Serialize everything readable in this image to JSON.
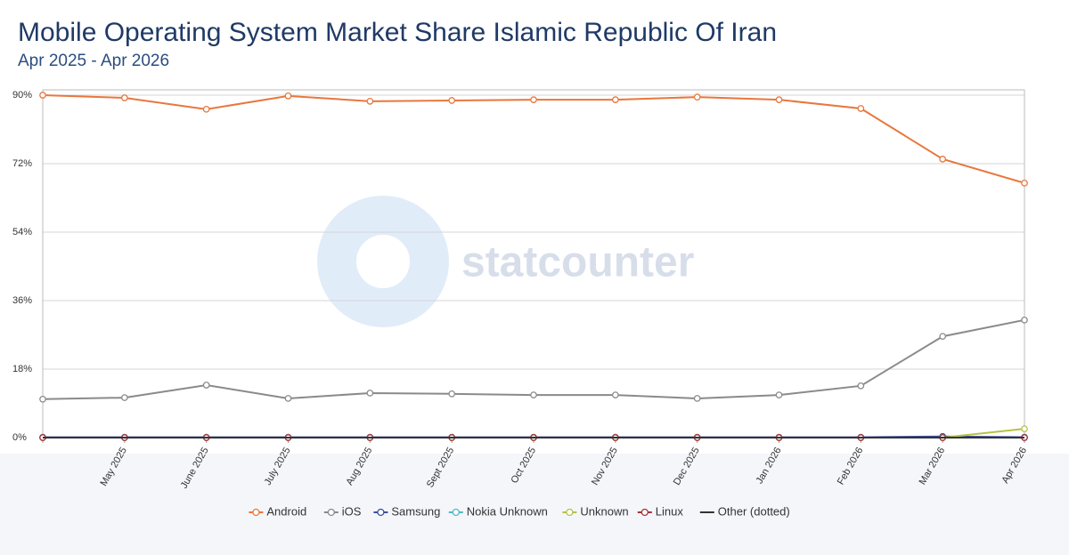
{
  "chart_data": {
    "type": "line",
    "title": "Mobile Operating System Market Share Islamic Republic Of Iran",
    "subtitle": "Apr 2025 - Apr 2026",
    "watermark": "statcounter",
    "categories": [
      null,
      "May 2025",
      "June 2025",
      "July 2025",
      "Aug 2025",
      "Sept 2025",
      "Oct 2025",
      "Nov 2025",
      "Dec 2025",
      "Jan 2026",
      "Feb 2026",
      "Mar 2026",
      "Apr 2026"
    ],
    "series": [
      {
        "name": "Android",
        "color": "#e8773d",
        "values": [
          90.0,
          89.3,
          86.3,
          89.8,
          88.4,
          88.6,
          88.8,
          88.8,
          89.5,
          88.8,
          86.5,
          73.2,
          66.9
        ]
      },
      {
        "name": "iOS",
        "color": "#8a8a8a",
        "values": [
          10.1,
          10.5,
          13.8,
          10.3,
          11.7,
          11.5,
          11.2,
          11.2,
          10.3,
          11.2,
          13.6,
          26.6,
          30.9
        ]
      },
      {
        "name": "Samsung",
        "color": "#3d4ea0",
        "values": [
          0.1,
          0.1,
          0.1,
          0.1,
          0.1,
          0.1,
          0.1,
          0.1,
          0.1,
          0.1,
          0.1,
          0.3,
          0.1
        ]
      },
      {
        "name": "Nokia Unknown",
        "color": "#55b7c7",
        "values": [
          0,
          0,
          0,
          0,
          0,
          0,
          0,
          0,
          0,
          0,
          0,
          0,
          0
        ]
      },
      {
        "name": "Unknown",
        "color": "#b5c244",
        "values": [
          0,
          0,
          0,
          0,
          0,
          0,
          0,
          0,
          0,
          0,
          0,
          0,
          2.3
        ]
      },
      {
        "name": "Linux",
        "color": "#a8323a",
        "values": [
          0,
          0,
          0,
          0,
          0,
          0,
          0,
          0,
          0,
          0,
          0,
          0,
          0
        ]
      },
      {
        "name": "Other (dotted)",
        "color": "#333333",
        "values": [
          0,
          0,
          0,
          0,
          0,
          0,
          0,
          0,
          0,
          0,
          0,
          0,
          0
        ]
      }
    ],
    "ylim": [
      0,
      90
    ],
    "yticks": [
      {
        "value": 0,
        "label": "0%"
      },
      {
        "value": 18,
        "label": "18%"
      },
      {
        "value": 36,
        "label": "36%"
      },
      {
        "value": 54,
        "label": "54%"
      },
      {
        "value": 72,
        "label": "72%"
      },
      {
        "value": 90,
        "label": "90%"
      }
    ],
    "grid": true
  }
}
